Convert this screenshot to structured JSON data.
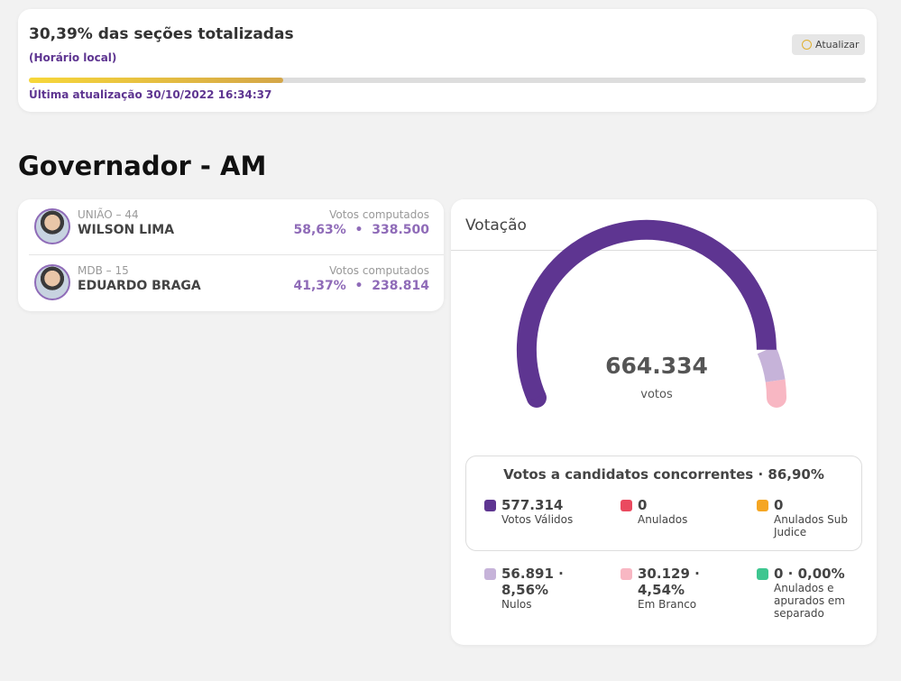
{
  "header": {
    "title": "30,39% das seções totalizadas",
    "progress": 30.39,
    "subtitle": "(Horário local)",
    "button": "Atualizar",
    "last_update": "Última atualização 30/10/2022 16:34:37"
  },
  "office": "Governador - AM",
  "candidates": [
    {
      "party": "UNIÃO – 44",
      "name": "WILSON LIMA",
      "votes_label": "Votos computados",
      "result": "58,63%  •  338.500"
    },
    {
      "party": "MDB – 15",
      "name": "EDUARDO BRAGA",
      "votes_label": "Votos computados",
      "result": "41,37%  •  238.814"
    }
  ],
  "votacao": {
    "title": "Votação",
    "total": "664.334",
    "total_unit": "votos",
    "box_title": "Votos a candidatos concorrentes · 86,90%",
    "items": [
      {
        "value": 577314,
        "label": "577.314",
        "name": "Votos Válidos",
        "color": "#5e3591"
      },
      {
        "value": 0,
        "label": "0",
        "name": "Anulados",
        "color": "#ea4a5f"
      },
      {
        "value": 0,
        "label": "0",
        "name": "Anulados Sub Judice",
        "color": "#f5a623"
      },
      {
        "value": 56891,
        "label": "56.891 · 8,56%",
        "name": "Nulos",
        "color": "#c6b3d9"
      },
      {
        "value": 30129,
        "label": "30.129 · 4,54%",
        "name": "Em Branco",
        "color": "#f8b7c3"
      },
      {
        "value": 0,
        "label": "0 · 0,00%",
        "name": "Anulados e apurados em separado",
        "color": "#3ec690"
      }
    ]
  }
}
